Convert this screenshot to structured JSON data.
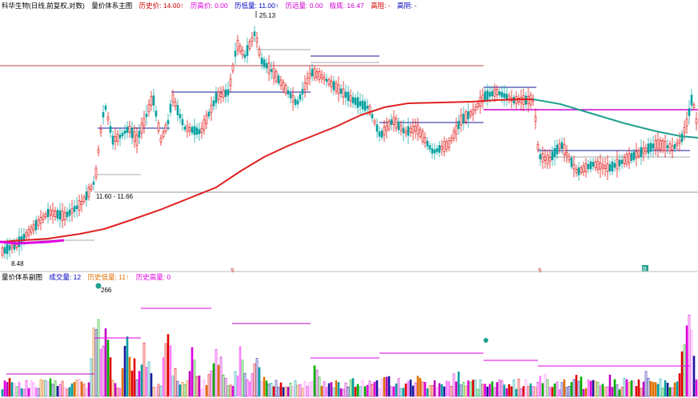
{
  "main_header": {
    "title": "科华生物(日线,前复权,对数)",
    "indicator": "量价体系主图",
    "items": [
      {
        "label": "历史价",
        "value": "14.00↑",
        "color": "#d40000"
      },
      {
        "label": "历高价",
        "value": "0.00",
        "color": "#e000e0"
      },
      {
        "label": "历低量",
        "value": "11.00↑",
        "color": "#0000c0"
      },
      {
        "label": "历远量",
        "value": "0.00",
        "color": "#d000d0"
      },
      {
        "label": "极底",
        "value": "16.47",
        "color": "#d000d0"
      },
      {
        "label": "高阻",
        "value": "-",
        "color": "#d40000"
      },
      {
        "label": "高阴",
        "value": "-",
        "color": "#0000c0"
      }
    ]
  },
  "price_labels": {
    "high": "25.13",
    "low": "8.48",
    "range": "11.60 - 11.66"
  },
  "markers": {
    "s1": "S",
    "s2": "S",
    "b": "B"
  },
  "sub_header": {
    "title": "量价体系副图",
    "items": [
      {
        "label": "成交量",
        "value": "12",
        "color": "#0000c0"
      },
      {
        "label": "历史低量",
        "value": "11↑",
        "color": "#e07000"
      },
      {
        "label": "历史高量",
        "value": "0",
        "color": "#e000e0"
      }
    ]
  },
  "volume_labels": {
    "peak": "266"
  },
  "colors": {
    "up": "#e00000",
    "down": "#00a0a0",
    "ma_red": "#e02020",
    "ma_teal": "#20a090",
    "blue_level": "#1a1a9e",
    "magenta_level": "#d000d0",
    "gray_level": "#999999"
  }
}
